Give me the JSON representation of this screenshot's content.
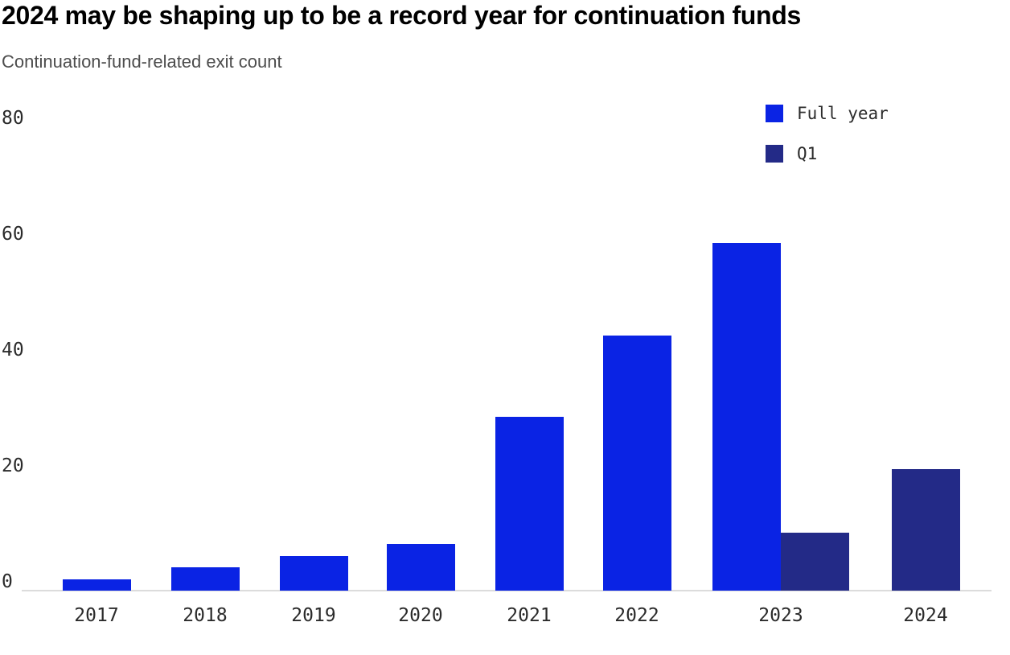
{
  "header": {
    "title": "2024 may be shaping up to be a record year for continuation funds",
    "subtitle": "Continuation-fund-related exit count"
  },
  "legend": {
    "items": [
      {
        "label": "Full year",
        "color": "#0a23e4"
      },
      {
        "label": "Q1",
        "color": "#232a87"
      }
    ]
  },
  "chart_data": {
    "type": "bar",
    "title": "2024 may be shaping up to be a record year for continuation funds",
    "subtitle": "Continuation-fund-related exit count",
    "categories": [
      "2017",
      "2018",
      "2019",
      "2020",
      "2021",
      "2022",
      "2023",
      "2024"
    ],
    "series": [
      {
        "name": "Full year",
        "color": "#0a23e4",
        "values": [
          2,
          4,
          6,
          8,
          30,
          44,
          60,
          null
        ]
      },
      {
        "name": "Q1",
        "color": "#232a87",
        "values": [
          null,
          null,
          null,
          null,
          null,
          null,
          10,
          21
        ]
      }
    ],
    "ylim": [
      0,
      80
    ],
    "yticks": [
      0,
      20,
      40,
      60,
      80
    ],
    "grid": false,
    "legend_position": "top-right"
  },
  "colors": {
    "background": "#ffffff",
    "title": "#000000",
    "subtitle": "#4d4d4d",
    "tick_label": "#2b2b2b",
    "axis_line": "#dcdcdc"
  }
}
